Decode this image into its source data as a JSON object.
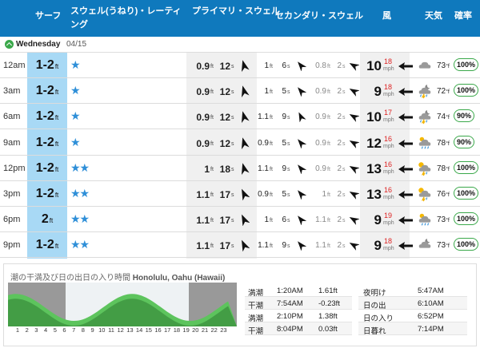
{
  "header": {
    "surf": "サーフ",
    "swell_rating": "スウェル(うねり)・レーティング",
    "primary_swell": "プライマリ・スウェル",
    "secondary_swell": "セカンダリ・スウェル",
    "wind": "風",
    "weather": "天気",
    "probability": "確率"
  },
  "day": {
    "name": "Wednesday",
    "date": "04/15"
  },
  "units": {
    "ft": "ft",
    "s": "s",
    "mph": "mph",
    "f": "°f"
  },
  "rows": [
    {
      "time": "12am",
      "surf": "1-2",
      "stars": "★",
      "p_h": "0.9",
      "p_p": "12",
      "s_h": "1",
      "s_p": "6",
      "t_h": "0.8",
      "t_p": "2",
      "w_s": "10",
      "w_g": "18",
      "temp": "73",
      "prob": "100%",
      "icon": "cloudy-icon",
      "pa": -15,
      "sa": -40,
      "ta": -60,
      "wa": 80
    },
    {
      "time": "3am",
      "surf": "1-2",
      "stars": "★",
      "p_h": "0.9",
      "p_p": "12",
      "s_h": "1",
      "s_p": "5",
      "t_h": "0.9",
      "t_p": "2",
      "w_s": "9",
      "w_g": "18",
      "temp": "72",
      "prob": "100%",
      "icon": "night-storm-icon",
      "pa": -15,
      "sa": -40,
      "ta": -60,
      "wa": 80
    },
    {
      "time": "6am",
      "surf": "1-2",
      "stars": "★",
      "p_h": "0.9",
      "p_p": "12",
      "s_h": "1.1",
      "s_p": "9",
      "t_h": "0.9",
      "t_p": "2",
      "w_s": "10",
      "w_g": "17",
      "temp": "74",
      "prob": "90%",
      "icon": "night-storm-icon",
      "pa": -15,
      "sa": -25,
      "ta": -60,
      "wa": 80
    },
    {
      "time": "9am",
      "surf": "1-2",
      "stars": "★",
      "p_h": "0.9",
      "p_p": "12",
      "s_h": "0.9",
      "s_p": "5",
      "t_h": "0.9",
      "t_p": "2",
      "w_s": "12",
      "w_g": "16",
      "temp": "78",
      "prob": "90%",
      "icon": "rain-cloud-icon",
      "pa": -15,
      "sa": -40,
      "ta": -60,
      "wa": 80
    },
    {
      "time": "12pm",
      "surf": "1-2",
      "stars": "★★",
      "p_h": "1",
      "p_p": "18",
      "s_h": "1.1",
      "s_p": "9",
      "t_h": "0.9",
      "t_p": "2",
      "w_s": "13",
      "w_g": "16",
      "temp": "78",
      "prob": "100%",
      "icon": "sun-storm-icon",
      "pa": -15,
      "sa": -40,
      "ta": -60,
      "wa": 80
    },
    {
      "time": "3pm",
      "surf": "1-2",
      "stars": "★★",
      "p_h": "1.1",
      "p_p": "17",
      "s_h": "0.9",
      "s_p": "5",
      "t_h": "1",
      "t_p": "2",
      "w_s": "13",
      "w_g": "16",
      "temp": "76",
      "prob": "100%",
      "icon": "sun-storm-icon",
      "pa": -25,
      "sa": -40,
      "ta": -60,
      "wa": 80
    },
    {
      "time": "6pm",
      "surf": "2",
      "stars": "★★",
      "p_h": "1.1",
      "p_p": "17",
      "s_h": "1",
      "s_p": "6",
      "t_h": "1.1",
      "t_p": "2",
      "w_s": "9",
      "w_g": "19",
      "temp": "73",
      "prob": "100%",
      "icon": "rain-cloud-icon",
      "pa": -25,
      "sa": -40,
      "ta": -60,
      "wa": 80
    },
    {
      "time": "9pm",
      "surf": "1-2",
      "stars": "★★",
      "p_h": "1.1",
      "p_p": "17",
      "s_h": "1.1",
      "s_p": "9",
      "t_h": "1.1",
      "t_p": "2",
      "w_s": "9",
      "w_g": "18",
      "temp": "73",
      "prob": "100%",
      "icon": "night-cloud-icon",
      "pa": -25,
      "sa": -40,
      "ta": -60,
      "wa": 80
    }
  ],
  "tide": {
    "title": "潮の干満及び日の出日の入り時間",
    "location": "Honolulu, Oahu (Hawaii)",
    "hours": [
      "1",
      "2",
      "3",
      "4",
      "5",
      "6",
      "7",
      "8",
      "9",
      "10",
      "11",
      "12",
      "13",
      "14",
      "15",
      "16",
      "17",
      "18",
      "19",
      "20",
      "21",
      "22",
      "23"
    ],
    "night_start": "6:10AM",
    "night_end": "6:52PM",
    "table": [
      {
        "type": "満潮",
        "time": "1:20AM",
        "height": "1.61ft"
      },
      {
        "type": "干潮",
        "time": "7:54AM",
        "height": "-0.23ft"
      },
      {
        "type": "満潮",
        "time": "2:10PM",
        "height": "1.38ft"
      },
      {
        "type": "干潮",
        "time": "8:04PM",
        "height": "0.03ft"
      }
    ],
    "sun": [
      {
        "label": "夜明け",
        "time": "5:47AM"
      },
      {
        "label": "日の出",
        "time": "6:10AM"
      },
      {
        "label": "日の入り",
        "time": "6:52PM"
      },
      {
        "label": "日暮れ",
        "time": "7:14PM"
      }
    ]
  },
  "colors": {
    "header": "#0f79bd",
    "surf_bg": "#a8d9f5",
    "star": "#2f8fd8",
    "gust": "#dd2222",
    "prob_border": "#3aa84a",
    "tide_dark": "#2e7d32",
    "tide_light": "#5dc45d"
  }
}
